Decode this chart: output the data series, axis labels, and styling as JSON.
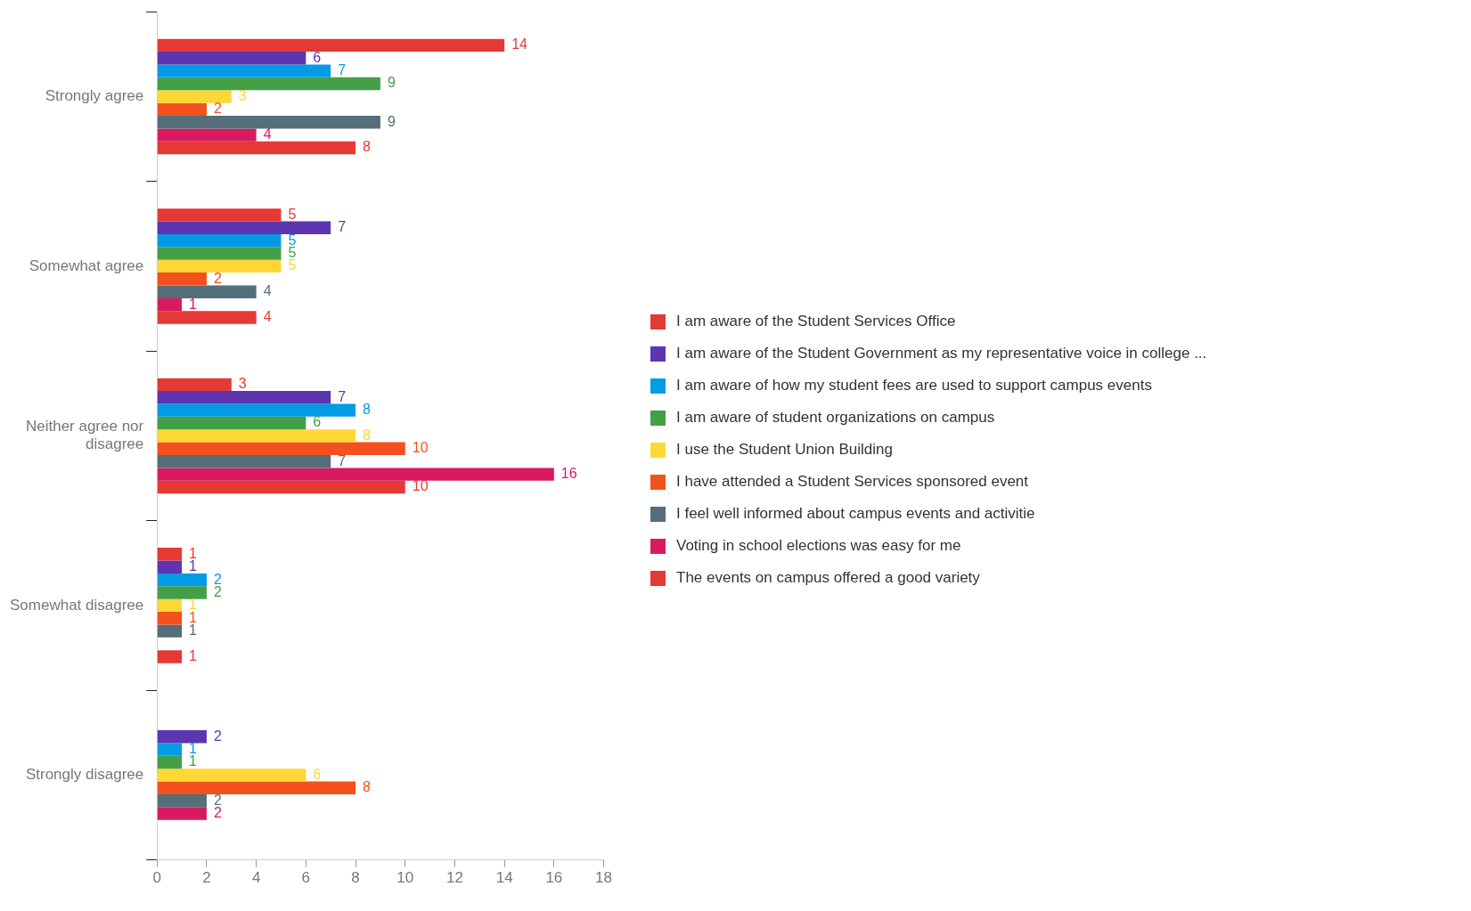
{
  "chart_data": {
    "type": "bar",
    "orientation": "horizontal",
    "categories": [
      "Strongly agree",
      "Somewhat agree",
      "Neither agree nor disagree",
      "Somewhat disagree",
      "Strongly disagree"
    ],
    "series": [
      {
        "name": "I am aware of the Student Services Office",
        "color": "#e53935",
        "values": [
          14,
          5,
          3,
          1,
          null
        ]
      },
      {
        "name": "I am aware of the Student Government as my representative voice in college ...",
        "color": "#5e35b1",
        "values": [
          6,
          7,
          7,
          1,
          2
        ]
      },
      {
        "name": "I am aware of how my student fees are used to support campus events",
        "color": "#039be5",
        "values": [
          7,
          5,
          8,
          2,
          1
        ]
      },
      {
        "name": "I am aware of student organizations on campus",
        "color": "#43a047",
        "values": [
          9,
          5,
          6,
          2,
          1
        ]
      },
      {
        "name": "I use the Student Union Building",
        "color": "#fdd835",
        "values": [
          3,
          5,
          8,
          1,
          6
        ]
      },
      {
        "name": "I have attended a Student Services sponsored event",
        "color": "#f4511e",
        "values": [
          2,
          2,
          10,
          1,
          8
        ]
      },
      {
        "name": "I feel well informed about campus events and activitie",
        "color": "#546e7a",
        "values": [
          9,
          4,
          7,
          1,
          2
        ]
      },
      {
        "name": "Voting in school elections was easy for me",
        "color": "#d81b60",
        "values": [
          4,
          1,
          16,
          null,
          2
        ]
      },
      {
        "name": "The events on campus offered a good variety",
        "color": "#e53935",
        "values": [
          8,
          4,
          10,
          1,
          null
        ]
      }
    ],
    "xlim": [
      0,
      18
    ],
    "xticks": [
      0,
      2,
      4,
      6,
      8,
      10,
      12,
      14,
      16,
      18
    ],
    "grid": false,
    "legend": "right",
    "data_labels": true
  }
}
